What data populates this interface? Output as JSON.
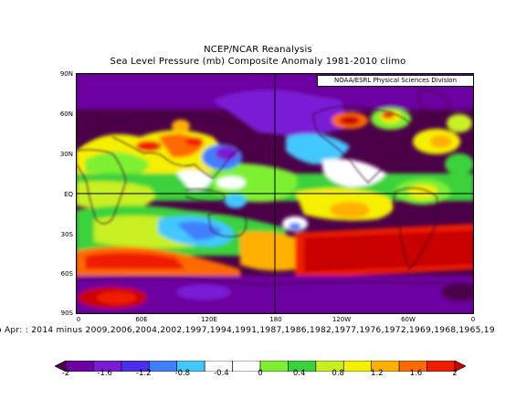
{
  "title": {
    "line1": "NCEP/NCAR Reanalysis",
    "line2": "Sea Level Pressure (mb) Composite Anomaly 1981-2010 climo"
  },
  "credit": "NOAA/ESRL Physical Sciences Division",
  "footnote": "o Apr: : 2014 minus 2009,2006,2004,2002,1997,1994,1991,1987,1986,1982,1977,1976,1972,1969,1968,1965,19",
  "lat_labels": [
    "90N",
    "60N",
    "30N",
    "EQ",
    "30S",
    "60S",
    "90S"
  ],
  "lon_labels": [
    "0",
    "60E",
    "120E",
    "180",
    "120W",
    "60W",
    "0"
  ],
  "colorbar": {
    "labels": [
      "-2",
      "-1.6",
      "-1.2",
      "-0.8",
      "-0.4",
      "0",
      "0.4",
      "0.8",
      "1.2",
      "1.6",
      "2"
    ],
    "colors": [
      "#4b0048",
      "#6d00a0",
      "#7a1cd6",
      "#4b2fe8",
      "#3f7fff",
      "#42c8ff",
      "#ffffff",
      "#ffffff",
      "#7ef030",
      "#3ad23a",
      "#c8f020",
      "#f5f000",
      "#ffb000",
      "#ff6a00",
      "#f01e00",
      "#c80000"
    ],
    "range": [
      -2,
      2
    ],
    "units": "mb"
  },
  "map": {
    "projection": "equirectangular",
    "lon_range": [
      0,
      360
    ],
    "lat_range": [
      -90,
      90
    ],
    "gridlines": [
      "0 / 180 / 360 longitude",
      "equator"
    ]
  }
}
